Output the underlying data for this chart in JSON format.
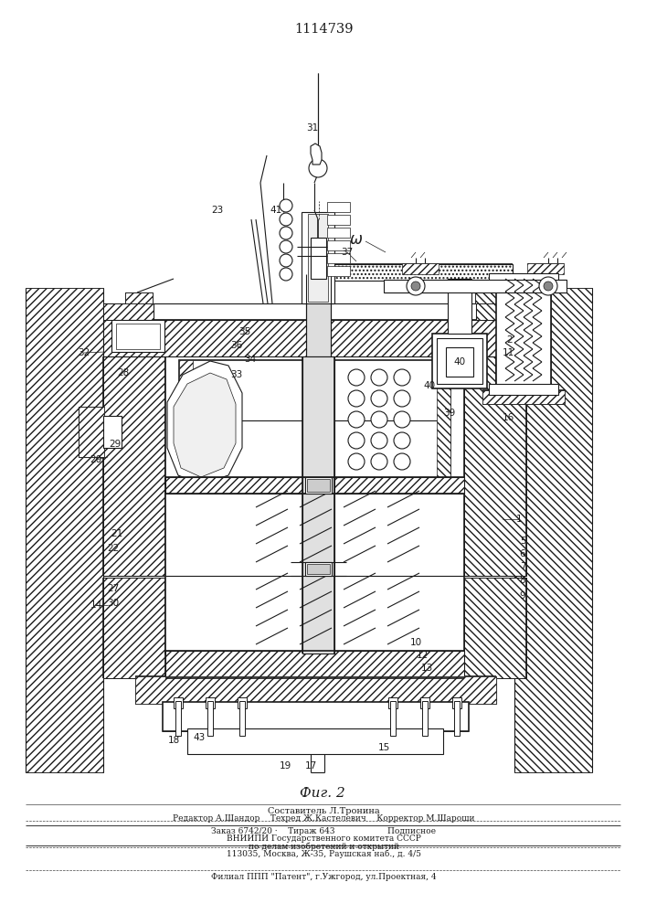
{
  "title": "1114739",
  "fig_label": "Фиг. 2",
  "bg_color": "#ffffff",
  "lc": "#1a1a1a",
  "footer": {
    "line1": "Составитель Л.Тронина",
    "line2": "Редактор А.Шандор    Техред Ж.Кастелевич    Корректор М.Шароши",
    "line3": "Заказ 6742/20 ·    Тираж 643                    Подписное",
    "line4": "ВНИИПИ Государственного комитета СССР",
    "line5": "по делам изобретений и открытий",
    "line6": "113035, Москва, Ж-35, Раушская наб., д. 4/5",
    "line7": "Филиал ППП \"Патент\", г.Ужгород, ул.Проектная, 4"
  }
}
